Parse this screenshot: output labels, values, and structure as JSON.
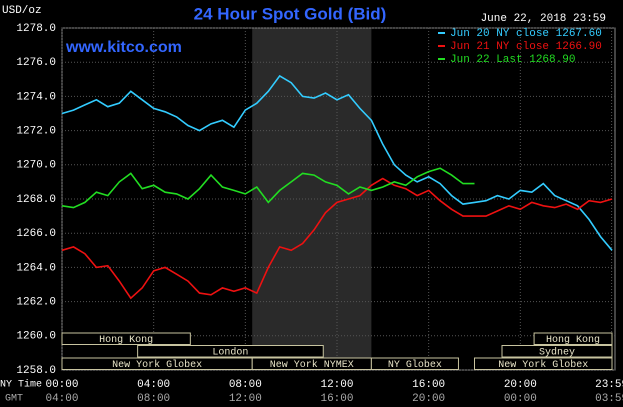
{
  "chart_data": {
    "type": "line",
    "title": "24 Hour Spot Gold (Bid)",
    "source": "www.kitco.com",
    "date": "June 22, 2018 23:59",
    "ylabel": "USD/oz",
    "xlabel": "NY Time",
    "x2label": "GMT",
    "x": [
      0,
      0.5,
      1,
      1.5,
      2,
      2.5,
      3,
      3.5,
      4,
      4.5,
      5,
      5.5,
      6,
      6.5,
      7,
      7.5,
      8,
      8.5,
      9,
      9.5,
      10,
      10.5,
      11,
      11.5,
      12,
      12.5,
      13,
      13.5,
      14,
      14.5,
      15,
      15.5,
      16,
      16.5,
      17,
      17.5,
      18,
      18.5,
      19,
      19.5,
      20,
      20.5,
      21,
      21.5,
      22,
      22.5,
      23,
      23.5,
      24
    ],
    "series": [
      {
        "name": "Jun 20 NY close 1267.60",
        "color": "#33ccff",
        "values": [
          1273.0,
          1273.2,
          1273.5,
          1273.8,
          1273.4,
          1273.6,
          1274.3,
          1273.8,
          1273.3,
          1273.1,
          1272.8,
          1272.3,
          1272.0,
          1272.4,
          1272.6,
          1272.2,
          1273.2,
          1273.6,
          1274.3,
          1275.2,
          1274.8,
          1274.0,
          1273.9,
          1274.2,
          1273.8,
          1274.1,
          1273.3,
          1272.6,
          1271.2,
          1270.0,
          1269.4,
          1269.0,
          1269.3,
          1268.9,
          1268.2,
          1267.7,
          1267.8,
          1267.9,
          1268.2,
          1268.0,
          1268.5,
          1268.4,
          1268.9,
          1268.2,
          1267.9,
          1267.6,
          1266.8,
          1265.8,
          1265.0
        ]
      },
      {
        "name": "Jun 21 NY close 1266.90",
        "color": "#ee1111",
        "values": [
          1265.0,
          1265.2,
          1264.8,
          1264.0,
          1264.1,
          1263.2,
          1262.2,
          1262.8,
          1263.8,
          1264.0,
          1263.6,
          1263.2,
          1262.5,
          1262.4,
          1262.8,
          1262.6,
          1262.8,
          1262.5,
          1264.0,
          1265.2,
          1265.0,
          1265.4,
          1266.2,
          1267.2,
          1267.8,
          1268.0,
          1268.2,
          1268.8,
          1269.2,
          1268.8,
          1268.6,
          1268.2,
          1268.5,
          1267.9,
          1267.4,
          1267.0,
          1267.0,
          1267.0,
          1267.3,
          1267.6,
          1267.4,
          1267.8,
          1267.6,
          1267.5,
          1267.7,
          1267.4,
          1267.9,
          1267.8,
          1268.0
        ]
      },
      {
        "name": "Jun 22 Last 1268.90",
        "color": "#22dd22",
        "values": [
          1267.6,
          1267.5,
          1267.8,
          1268.4,
          1268.2,
          1269.0,
          1269.5,
          1268.6,
          1268.8,
          1268.4,
          1268.3,
          1268.0,
          1268.6,
          1269.4,
          1268.7,
          1268.5,
          1268.3,
          1268.7,
          1267.8,
          1268.5,
          1269.0,
          1269.5,
          1269.4,
          1269.0,
          1268.8,
          1268.3,
          1268.7,
          1268.5,
          1268.7,
          1269.0,
          1268.8,
          1269.3,
          1269.6,
          1269.8,
          1269.4,
          1268.9,
          1268.9,
          null,
          null,
          null,
          null,
          null,
          null,
          null,
          null,
          null,
          null,
          null,
          null
        ]
      }
    ],
    "xlim": [
      0,
      24
    ],
    "xticks": [
      {
        "value": 0,
        "label": "00:00"
      },
      {
        "value": 4,
        "label": "04:00"
      },
      {
        "value": 8,
        "label": "08:00"
      },
      {
        "value": 12,
        "label": "12:00"
      },
      {
        "value": 16,
        "label": "16:00"
      },
      {
        "value": 20,
        "label": "20:00"
      },
      {
        "value": 23.983,
        "label": "23:59"
      }
    ],
    "x2ticklabels": [
      "04:00",
      "08:00",
      "12:00",
      "16:00",
      "20:00",
      "00:00",
      "03:59"
    ],
    "ylim": [
      1258,
      1278
    ],
    "yticks": [
      {
        "value": 1258,
        "label": "1258.0"
      },
      {
        "value": 1260,
        "label": "1260.0"
      },
      {
        "value": 1262,
        "label": "1262.0"
      },
      {
        "value": 1264,
        "label": "1264.0"
      },
      {
        "value": 1266,
        "label": "1266.0"
      },
      {
        "value": 1268,
        "label": "1268.0"
      },
      {
        "value": 1270,
        "label": "1270.0"
      },
      {
        "value": 1272,
        "label": "1272.0"
      },
      {
        "value": 1274,
        "label": "1274.0"
      },
      {
        "value": 1276,
        "label": "1276.0"
      },
      {
        "value": 1278,
        "label": "1278.0"
      }
    ],
    "grid": true,
    "session_rows": [
      [
        {
          "label": "Hong Kong",
          "start": 0,
          "end": 5.6
        },
        {
          "label": "Hong Kong",
          "start": 20.6,
          "end": 24
        }
      ],
      [
        {
          "label": "London",
          "start": 3.3,
          "end": 11.4
        },
        {
          "label": "Sydney",
          "start": 19.2,
          "end": 24
        }
      ],
      [
        {
          "label": "New York Globex",
          "start": 0,
          "end": 8.3
        },
        {
          "label": "New York NYMEX",
          "start": 8.3,
          "end": 13.5,
          "highlight": true
        },
        {
          "label": "NY Globex",
          "start": 13.5,
          "end": 17.3
        },
        {
          "label": "New York Globex",
          "start": 18,
          "end": 24
        }
      ]
    ]
  }
}
